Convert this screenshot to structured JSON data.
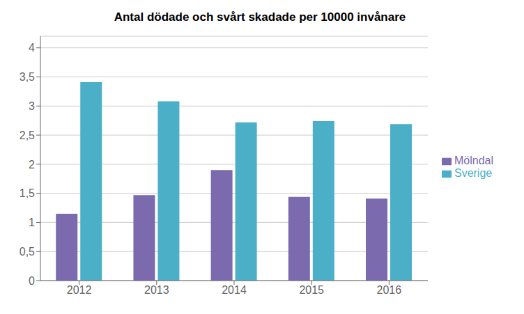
{
  "chart_data": {
    "type": "bar",
    "title": "Antal dödade och svårt skadade per 10000 invånare",
    "categories": [
      "2012",
      "2013",
      "2014",
      "2015",
      "2016"
    ],
    "series": [
      {
        "name": "Mölndal",
        "color": "#7B6BAE",
        "values": [
          1.15,
          1.47,
          1.9,
          1.44,
          1.41
        ]
      },
      {
        "name": "Sverige",
        "color": "#4BAFC8",
        "values": [
          3.41,
          3.08,
          2.72,
          2.74,
          2.69
        ]
      }
    ],
    "ylim": [
      0,
      4.2
    ],
    "yticks": [
      0,
      {
        "value": 0.5,
        "label": "0,5"
      },
      1,
      {
        "value": 1.5,
        "label": "1,5"
      },
      2,
      {
        "value": 2.5,
        "label": "2,5"
      },
      3,
      {
        "value": 3.5,
        "label": "3,5"
      },
      4
    ],
    "grid": true,
    "legend": "right"
  }
}
